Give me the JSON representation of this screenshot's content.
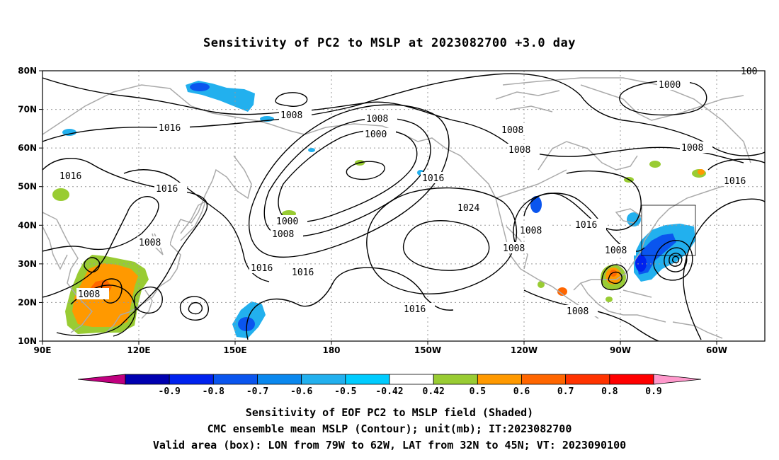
{
  "title": "Sensitivity of PC2 to MSLP at 2023082700 +3.0 day",
  "map": {
    "lat_ticks": [
      "10N",
      "20N",
      "30N",
      "40N",
      "50N",
      "60N",
      "70N",
      "80N"
    ],
    "lon_ticks": [
      "90E",
      "120E",
      "150E",
      "180",
      "150W",
      "120W",
      "90W",
      "60W"
    ],
    "contour_labels": [
      {
        "text": "1008"
      },
      {
        "text": "1016"
      },
      {
        "text": "1016"
      },
      {
        "text": "1016"
      },
      {
        "text": "1008"
      },
      {
        "text": "1008"
      },
      {
        "text": "1008"
      },
      {
        "text": "1000"
      },
      {
        "text": "1000"
      },
      {
        "text": "1008"
      },
      {
        "text": "1016"
      },
      {
        "text": "1016"
      },
      {
        "text": "1016"
      },
      {
        "text": "1024"
      },
      {
        "text": "1016"
      },
      {
        "text": "1008"
      },
      {
        "text": "1008"
      },
      {
        "text": "1016"
      },
      {
        "text": "1008"
      },
      {
        "text": "1000"
      },
      {
        "text": "1008"
      },
      {
        "text": "1016"
      },
      {
        "text": "1008"
      },
      {
        "text": "1008"
      },
      {
        "text": "100"
      },
      {
        "text": "1008"
      }
    ],
    "box_colors": {
      "contour": "#000000",
      "coast": "#aaaaaa",
      "grid": "#999999"
    }
  },
  "colorbar": {
    "colors": [
      "#c0007f",
      "#0000b0",
      "#0022ee",
      "#0a55ee",
      "#0a88ee",
      "#22b0ee",
      "#00ccff",
      "#ffffff",
      "#99cc33",
      "#ff9900",
      "#ff6600",
      "#ff3300",
      "#ff0000",
      "#ff99cc"
    ],
    "labels": [
      "-0.9",
      "-0.8",
      "-0.7",
      "-0.6",
      "-0.5",
      "-0.42",
      "0.42",
      "0.5",
      "0.6",
      "0.7",
      "0.8",
      "0.9"
    ]
  },
  "captions": {
    "line1": "Sensitivity of EOF PC2 to MSLP field (Shaded)",
    "line2": "CMC ensemble mean MSLP (Contour); unit(mb); IT:2023082700",
    "line3": "Valid area (box): LON from 79W to 62W, LAT from 32N to 45N; VT: 2023090100"
  }
}
